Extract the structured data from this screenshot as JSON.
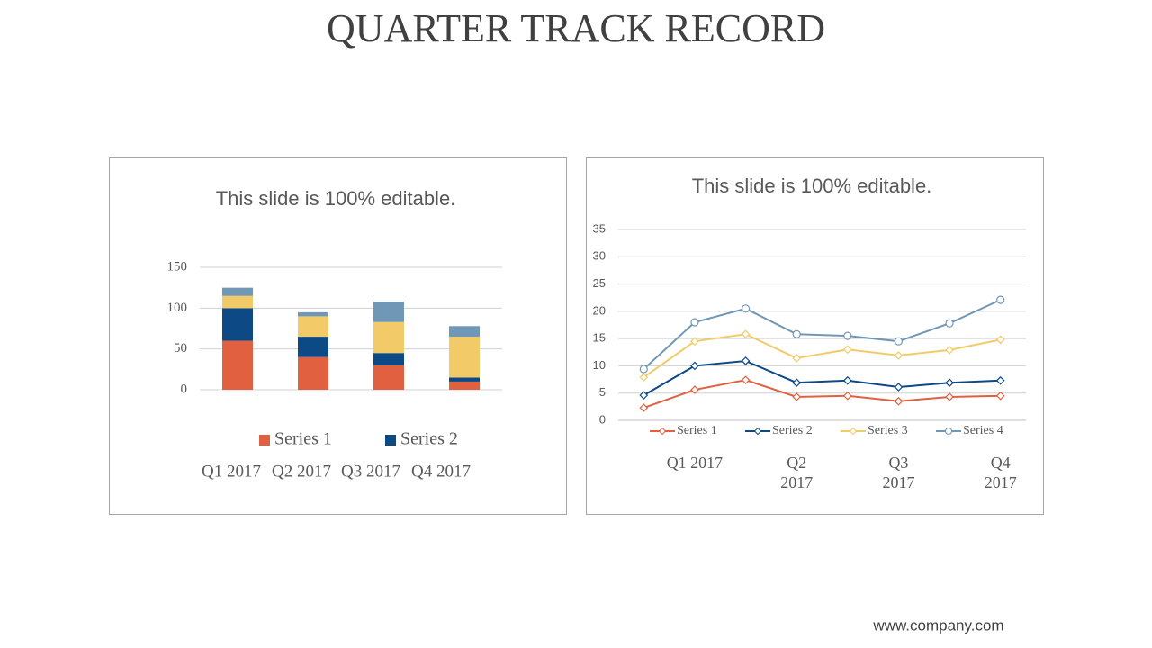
{
  "title": "QUARTER TRACK RECORD",
  "footer": "www.company.com",
  "chart_data": [
    {
      "type": "bar",
      "stacked": true,
      "title": "This slide is 100% editable.",
      "categories": [
        "Q1 2017",
        "Q2 2017",
        "Q3 2017",
        "Q4 2017"
      ],
      "series": [
        {
          "name": "Series 1",
          "color": "#e0603f",
          "values": [
            60,
            40,
            30,
            10
          ]
        },
        {
          "name": "Series 2",
          "color": "#0d4a85",
          "values": [
            40,
            25,
            15,
            5
          ]
        },
        {
          "color": "#f2cb68",
          "values": [
            15,
            25,
            38,
            50
          ]
        },
        {
          "color": "#7097b6",
          "values": [
            10,
            5,
            25,
            13
          ]
        }
      ],
      "ylim": [
        0,
        150
      ],
      "yticks": [
        0,
        50,
        100,
        150
      ],
      "grid": true,
      "legend": "bottom"
    },
    {
      "type": "line",
      "title": "This slide is 100% editable.",
      "categories": [
        null,
        "Q1 2017",
        null,
        "Q2 2017",
        null,
        "Q3 2017",
        null,
        "Q4 2017"
      ],
      "series": [
        {
          "name": "Series 1",
          "color": "#e0603f",
          "marker": "diamond",
          "values": [
            2.3,
            5.6,
            7.4,
            4.3,
            4.5,
            3.5,
            4.3,
            4.5
          ]
        },
        {
          "name": "Series 2",
          "color": "#0d4a85",
          "marker": "diamond",
          "values": [
            4.6,
            10,
            10.9,
            6.9,
            7.3,
            6.1,
            6.9,
            7.3
          ]
        },
        {
          "name": "Series 3",
          "color": "#f2cb68",
          "marker": "diamond",
          "values": [
            7.9,
            14.5,
            15.8,
            11.4,
            13,
            11.9,
            12.9,
            14.8
          ]
        },
        {
          "name": "Series 4",
          "color": "#7097b6",
          "marker": "circle",
          "values": [
            9.4,
            18,
            20.5,
            15.8,
            15.5,
            14.5,
            17.8,
            22.1
          ]
        }
      ],
      "ylim": [
        0,
        35
      ],
      "yticks": [
        0,
        5,
        10,
        15,
        20,
        25,
        30,
        35
      ],
      "grid": true,
      "legend": "bottom"
    }
  ]
}
